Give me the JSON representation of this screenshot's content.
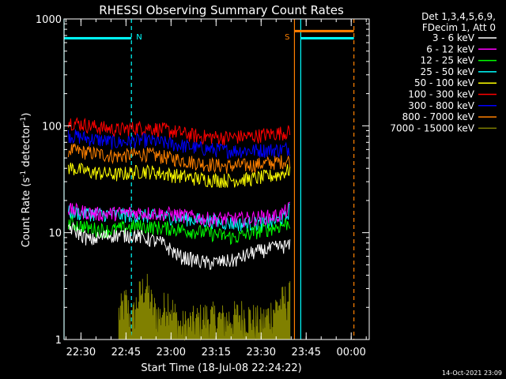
{
  "chart_data": {
    "type": "line",
    "title": "RHESSI Observing Summary Count Rates",
    "xlabel": "Start Time (18-Jul-08 22:24:22)",
    "ylabel_prefix": "Count Rate (s",
    "ylabel_sup1": "-1",
    "ylabel_mid": " detector",
    "ylabel_sup2": "-1",
    "ylabel_suffix": ")",
    "yscale": "log",
    "ylim": [
      1,
      1000
    ],
    "y_ticks": [
      {
        "value": 1,
        "label": "1"
      },
      {
        "value": 10,
        "label": "10"
      },
      {
        "value": 100,
        "label": "100"
      },
      {
        "value": 1000,
        "label": "1000"
      }
    ],
    "xlim": [
      22.4061,
      24.1
    ],
    "x_ticks": [
      {
        "value": 22.5,
        "label": "22:30"
      },
      {
        "value": 22.75,
        "label": "22:45"
      },
      {
        "value": 23.0,
        "label": "23:00"
      },
      {
        "value": 23.25,
        "label": "23:15"
      },
      {
        "value": 23.5,
        "label": "23:30"
      },
      {
        "value": 23.75,
        "label": "23:45"
      },
      {
        "value": 24.0,
        "label": "00:00"
      }
    ],
    "legend_header": [
      "Det 1,3,4,5,6,9,",
      "FDecim 1, Att 0"
    ],
    "series": [
      {
        "name": "3 - 6 keV",
        "color": "#ffffff",
        "t": [
          22.43,
          22.55,
          22.65,
          22.8,
          22.95,
          23.05,
          23.2,
          23.35,
          23.45,
          23.62,
          23.66
        ],
        "values": [
          11.5,
          8.5,
          9.5,
          9.5,
          8,
          6,
          5.2,
          5.5,
          6.5,
          7.5,
          7.5
        ]
      },
      {
        "name": "6 - 12 keV",
        "color": "#ff00ff",
        "t": [
          22.43,
          22.6,
          22.8,
          23.0,
          23.2,
          23.4,
          23.6,
          23.66
        ],
        "values": [
          16.5,
          15,
          15.5,
          15,
          13.5,
          13.5,
          14.5,
          17
        ]
      },
      {
        "name": "12 - 25 keV",
        "color": "#00ff00",
        "t": [
          22.43,
          22.55,
          22.65,
          22.8,
          23.0,
          23.2,
          23.35,
          23.5,
          23.6,
          23.66
        ],
        "values": [
          12.5,
          11,
          10.5,
          11.5,
          11,
          10,
          9,
          10.5,
          11.5,
          12.5
        ]
      },
      {
        "name": "25 - 50 keV",
        "color": "#00ffff",
        "t": [
          22.43,
          22.6,
          22.8,
          23.0,
          23.2,
          23.4,
          23.55,
          23.64,
          23.66
        ],
        "values": [
          15.5,
          15,
          14.5,
          14,
          13,
          12,
          12.5,
          14,
          17
        ]
      },
      {
        "name": "50 - 100 keV",
        "color": "#ffff00",
        "t": [
          22.43,
          22.55,
          22.7,
          22.85,
          23.0,
          23.15,
          23.3,
          23.45,
          23.6,
          23.66
        ],
        "values": [
          41,
          37,
          35,
          38,
          35,
          32,
          31,
          32,
          35,
          39
        ]
      },
      {
        "name": "100 - 300 keV",
        "color": "#ff0000",
        "t": [
          22.43,
          22.55,
          22.7,
          22.85,
          23.0,
          23.15,
          23.3,
          23.45,
          23.6,
          23.66
        ],
        "values": [
          110,
          100,
          92,
          98,
          90,
          80,
          78,
          80,
          86,
          88
        ]
      },
      {
        "name": "300 - 800 keV",
        "color": "#0000ff",
        "t": [
          22.43,
          22.55,
          22.7,
          22.85,
          23.0,
          23.15,
          23.3,
          23.45,
          23.6,
          23.66
        ],
        "values": [
          82,
          76,
          70,
          74,
          68,
          62,
          59,
          59,
          60,
          62
        ]
      },
      {
        "name": "800 - 7000 keV",
        "color": "#ff8000",
        "t": [
          22.43,
          22.55,
          22.7,
          22.85,
          23.0,
          23.15,
          23.3,
          23.45,
          23.6,
          23.66
        ],
        "values": [
          60,
          56,
          52,
          55,
          50,
          45,
          42,
          43,
          46,
          48
        ]
      },
      {
        "name": "7000 - 15000 keV",
        "color": "#808000",
        "t": [
          22.71,
          22.75,
          22.78,
          22.82,
          22.86,
          22.9,
          22.94,
          22.98,
          23.05,
          23.2,
          23.3,
          23.4,
          23.5,
          23.6,
          23.66
        ],
        "values": [
          1.6,
          2.1,
          1.3,
          2.3,
          3.0,
          1.8,
          1.5,
          2.2,
          1.2,
          1.5,
          1.4,
          1.6,
          1.3,
          2.0,
          2.3
        ]
      }
    ],
    "annotations": [
      {
        "label": "N",
        "time": 22.78,
        "color": "#00ffff"
      },
      {
        "label": "S",
        "time": 23.685,
        "color": "#ff8000"
      }
    ],
    "night_markers": [
      {
        "start": 22.4061,
        "end": 22.78,
        "level": 660,
        "color": "#00ffff"
      },
      {
        "start": 23.72,
        "end": 24.015,
        "level": 660,
        "color": "#00ffff"
      }
    ],
    "saa_marker": {
      "start": 23.685,
      "end": 24.015,
      "level": 770,
      "color": "#ff8000"
    },
    "vertical_lines": [
      {
        "time": 22.4061,
        "color": "#00ffff",
        "style": "solid"
      },
      {
        "time": 22.78,
        "color": "#00ffff",
        "style": "dashed"
      },
      {
        "time": 23.685,
        "color": "#ff8000",
        "style": "solid"
      },
      {
        "time": 23.72,
        "color": "#00ffff",
        "style": "solid"
      },
      {
        "time": 24.015,
        "color": "#ff8000",
        "style": "dashed"
      }
    ],
    "timestamp": "14-Oct-2021 23:09"
  }
}
